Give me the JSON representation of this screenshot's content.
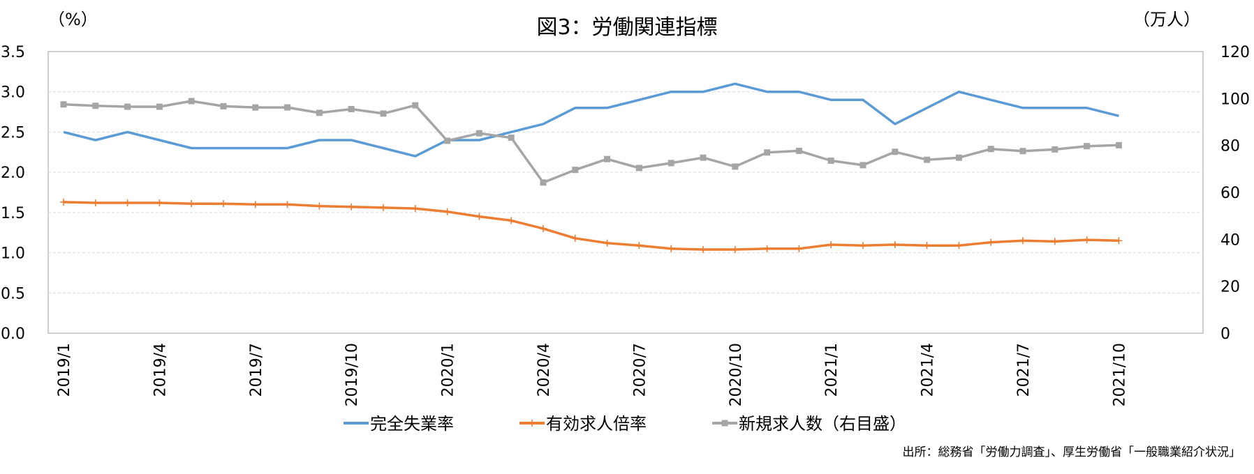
{
  "chart_data": {
    "type": "line",
    "title": "図3：労働関連指標",
    "y_left_unit": "（%）",
    "y_right_unit": "（万人）",
    "source": "出所：総務省「労働力調査」、厚生労働省「一般職業紹介状況」",
    "y_left": {
      "min": 0,
      "max": 3.5,
      "ticks": [
        "0.0",
        "0.5",
        "1.0",
        "1.5",
        "2.0",
        "2.5",
        "3.0",
        "3.5"
      ]
    },
    "y_right": {
      "min": 0,
      "max": 120,
      "ticks": [
        "0",
        "20",
        "40",
        "60",
        "80",
        "100",
        "120"
      ]
    },
    "x_categories": [
      "2019/1",
      "2019/2",
      "2019/3",
      "2019/4",
      "2019/5",
      "2019/6",
      "2019/7",
      "2019/8",
      "2019/9",
      "2019/10",
      "2019/11",
      "2019/12",
      "2020/1",
      "2020/2",
      "2020/3",
      "2020/4",
      "2020/5",
      "2020/6",
      "2020/7",
      "2020/8",
      "2020/9",
      "2020/10",
      "2020/11",
      "2020/12",
      "2021/1",
      "2021/2",
      "2021/3",
      "2021/4",
      "2021/5",
      "2021/6",
      "2021/7",
      "2021/8",
      "2021/9",
      "2021/10"
    ],
    "x_tick_labels": [
      "2019/1",
      "2019/4",
      "2019/7",
      "2019/10",
      "2020/1",
      "2020/4",
      "2020/7",
      "2020/10",
      "2021/1",
      "2021/4",
      "2021/7",
      "2021/10"
    ],
    "grid": true,
    "legend_position": "bottom",
    "series": [
      {
        "name": "完全失業率",
        "axis": "left",
        "color": "#5B9BD5",
        "marker": "none",
        "values": [
          2.5,
          2.4,
          2.5,
          2.4,
          2.3,
          2.3,
          2.3,
          2.3,
          2.4,
          2.4,
          2.3,
          2.2,
          2.4,
          2.4,
          2.5,
          2.6,
          2.8,
          2.8,
          2.9,
          3.0,
          3.0,
          3.1,
          3.0,
          3.0,
          2.9,
          2.9,
          2.6,
          2.8,
          3.0,
          2.9,
          2.8,
          2.8,
          2.8,
          2.7
        ]
      },
      {
        "name": "有効求人倍率",
        "axis": "left",
        "color": "#ED7D31",
        "marker": "plus",
        "values": [
          1.63,
          1.62,
          1.62,
          1.62,
          1.61,
          1.61,
          1.6,
          1.6,
          1.58,
          1.57,
          1.56,
          1.55,
          1.51,
          1.45,
          1.4,
          1.3,
          1.18,
          1.12,
          1.09,
          1.05,
          1.04,
          1.04,
          1.05,
          1.05,
          1.1,
          1.09,
          1.1,
          1.09,
          1.09,
          1.13,
          1.15,
          1.14,
          1.16,
          1.15
        ]
      },
      {
        "name": "新規求人数（右目盛）",
        "axis": "right",
        "color": "#A5A5A5",
        "marker": "square",
        "values": [
          97.5,
          96.9,
          96.5,
          96.5,
          98.9,
          96.7,
          96.2,
          96.2,
          93.9,
          95.5,
          93.6,
          97.1,
          82.0,
          85.2,
          83.3,
          64.2,
          69.6,
          74.2,
          70.4,
          72.5,
          74.8,
          71.0,
          77.0,
          77.7,
          73.5,
          71.6,
          77.3,
          73.9,
          74.8,
          78.5,
          77.6,
          78.3,
          79.7,
          80.1
        ]
      }
    ]
  }
}
